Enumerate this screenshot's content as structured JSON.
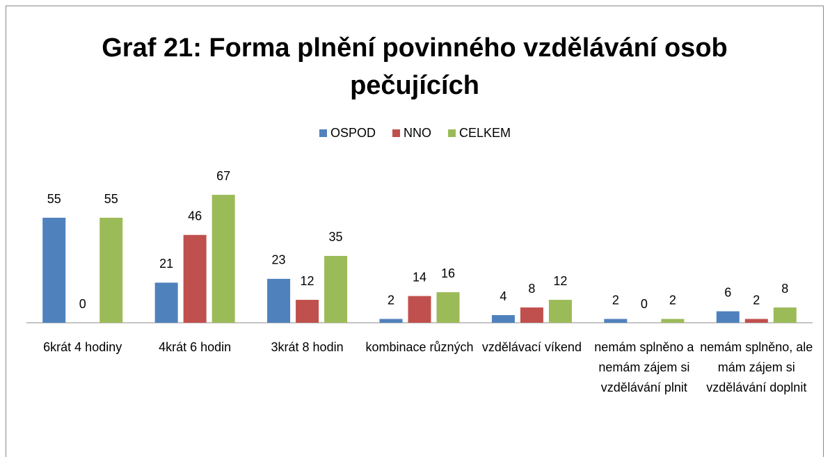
{
  "chart_data": {
    "type": "bar",
    "title": "Graf 21: Forma plnění povinného vzdělávání osob pečujících",
    "categories": [
      "6krát 4 hodiny",
      "4krát 6 hodin",
      "3krát 8 hodin",
      "kombinace různých",
      "vzdělávací víkend",
      "nemám splněno a nemám zájem si vzdělávání plnit",
      "nemám splněno, ale mám zájem si vzdělávání doplnit"
    ],
    "series": [
      {
        "name": "OSPOD",
        "color": "#4f81bd",
        "values": [
          55,
          21,
          23,
          2,
          4,
          2,
          6
        ]
      },
      {
        "name": "NNO",
        "color": "#c0504d",
        "values": [
          0,
          46,
          12,
          14,
          8,
          0,
          2
        ]
      },
      {
        "name": "CELKEM",
        "color": "#9bbb59",
        "values": [
          55,
          67,
          35,
          16,
          12,
          2,
          8
        ]
      }
    ],
    "legend": "top"
  }
}
